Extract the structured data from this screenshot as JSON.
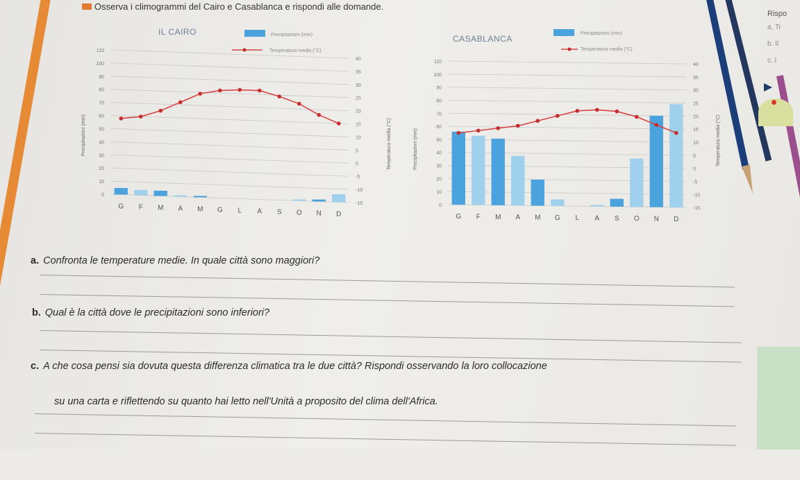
{
  "header": {
    "text": "Osserva i climogrammi del Cairo e Casablanca e rispondi alle domande."
  },
  "side": {
    "title": "Rispo",
    "items": [
      "a. Ti",
      "b. Il",
      "c. I"
    ]
  },
  "legend": {
    "precip_label": "Precipitazioni (mm)",
    "temp_label": "Temperatura media (°C)"
  },
  "colors": {
    "bar_dark": "#4aa3dc",
    "bar_light": "#9fd0ec",
    "temp_line": "#d64545",
    "temp_point": "#c62e2e",
    "accent_orange": "#e78a36"
  },
  "chart_data": [
    {
      "type": "bar",
      "title": "IL CAIRO",
      "ylabel": "Precipitazioni (mm)",
      "y2label": "Temperatura media (°C)",
      "categories": [
        "G",
        "F",
        "M",
        "A",
        "M",
        "G",
        "L",
        "A",
        "S",
        "O",
        "N",
        "D"
      ],
      "precip_ticks": [
        "0",
        "10",
        "20",
        "30",
        "40",
        "50",
        "60",
        "70",
        "80",
        "90",
        "100",
        "110"
      ],
      "temp_ticks": [
        "-15",
        "-10",
        "-5",
        "0",
        "5",
        "10",
        "15",
        "20",
        "25",
        "30",
        "35",
        "40"
      ],
      "ylim": [
        0,
        110
      ],
      "y2lim": [
        -15,
        40
      ],
      "series": [
        {
          "name": "Precipitazioni (mm)",
          "values": [
            5,
            4,
            4,
            1,
            0.5,
            0,
            0,
            0,
            0,
            0.5,
            1.5,
            6
          ]
        },
        {
          "name": "Temperatura media (°C)",
          "values": [
            14,
            15,
            17.5,
            21,
            24.5,
            26,
            26.5,
            26.5,
            24.5,
            22,
            18,
            15
          ]
        }
      ]
    },
    {
      "type": "bar",
      "title": "CASABLANCA",
      "ylabel": "Precipitazioni (mm)",
      "y2label": "Temperatura media (°C)",
      "categories": [
        "G",
        "F",
        "M",
        "A",
        "M",
        "G",
        "L",
        "A",
        "S",
        "O",
        "N",
        "D"
      ],
      "precip_ticks": [
        "0",
        "10",
        "20",
        "30",
        "40",
        "50",
        "60",
        "70",
        "80",
        "90",
        "100",
        "110"
      ],
      "temp_ticks": [
        "-15",
        "-10",
        "-5",
        "0",
        "5",
        "10",
        "15",
        "20",
        "25",
        "30",
        "35",
        "40"
      ],
      "ylim": [
        0,
        110
      ],
      "y2lim": [
        -15,
        40
      ],
      "series": [
        {
          "name": "Precipitazioni (mm)",
          "values": [
            56,
            53,
            51,
            38,
            20,
            5,
            0,
            1,
            6,
            37,
            70,
            79
          ]
        },
        {
          "name": "Temperatura media (°C)",
          "values": [
            12.5,
            13.5,
            14.5,
            15.5,
            17.5,
            19.5,
            21.5,
            22,
            21.5,
            19.5,
            16.5,
            13.5
          ]
        }
      ]
    }
  ],
  "questions": [
    {
      "letter": "a.",
      "text": "Confronta le temperature medie. In quale città sono maggiori?"
    },
    {
      "letter": "b.",
      "text": "Qual è la città dove le precipitazioni sono inferiori?"
    },
    {
      "letter": "c.",
      "text": "A che cosa pensi sia dovuta questa differenza climatica tra le due città? Rispondi osservando la loro collocazione"
    },
    {
      "letter": "",
      "text": "su una carta e riflettendo su quanto hai letto nell'Unità a proposito del clima dell'Africa."
    }
  ]
}
